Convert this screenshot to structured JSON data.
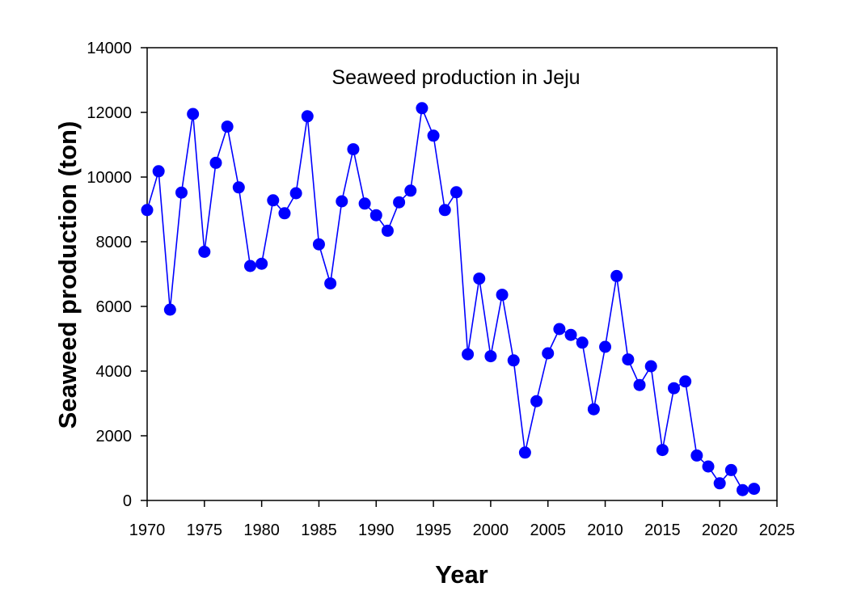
{
  "chart_data": {
    "type": "line",
    "title": "Seaweed production in Jeju",
    "xlabel": "Year",
    "ylabel": "Seaweed production (ton)",
    "xlim": [
      1970,
      2025
    ],
    "ylim": [
      0,
      14000
    ],
    "xticks": [
      1970,
      1975,
      1980,
      1985,
      1990,
      1995,
      2000,
      2005,
      2010,
      2015,
      2020,
      2025
    ],
    "yticks": [
      0,
      2000,
      4000,
      6000,
      8000,
      10000,
      12000,
      14000
    ],
    "grid": false,
    "legend": "none",
    "series": [
      {
        "name": "Seaweed production",
        "color": "#0000FF",
        "marker": "circle",
        "x": [
          1970,
          1971,
          1972,
          1973,
          1974,
          1975,
          1976,
          1977,
          1978,
          1979,
          1980,
          1981,
          1982,
          1983,
          1984,
          1985,
          1986,
          1987,
          1988,
          1989,
          1990,
          1991,
          1992,
          1993,
          1994,
          1995,
          1996,
          1997,
          1998,
          1999,
          2000,
          2001,
          2002,
          2003,
          2004,
          2005,
          2006,
          2007,
          2008,
          2009,
          2010,
          2011,
          2012,
          2013,
          2014,
          2015,
          2016,
          2017,
          2018,
          2019,
          2020,
          2021,
          2022,
          2023
        ],
        "y": [
          8980,
          10180,
          5900,
          9520,
          11950,
          7690,
          10440,
          11560,
          9680,
          7250,
          7320,
          9280,
          8880,
          9500,
          11880,
          7920,
          6710,
          9250,
          10860,
          9180,
          8820,
          8340,
          9220,
          9580,
          12130,
          11280,
          8980,
          9530,
          4520,
          6860,
          4460,
          6360,
          4330,
          1480,
          3070,
          4550,
          5300,
          5120,
          4880,
          2820,
          4750,
          6940,
          4360,
          3570,
          4150,
          1560,
          3470,
          3680,
          1390,
          1050,
          530,
          940,
          320,
          360
        ]
      }
    ]
  }
}
